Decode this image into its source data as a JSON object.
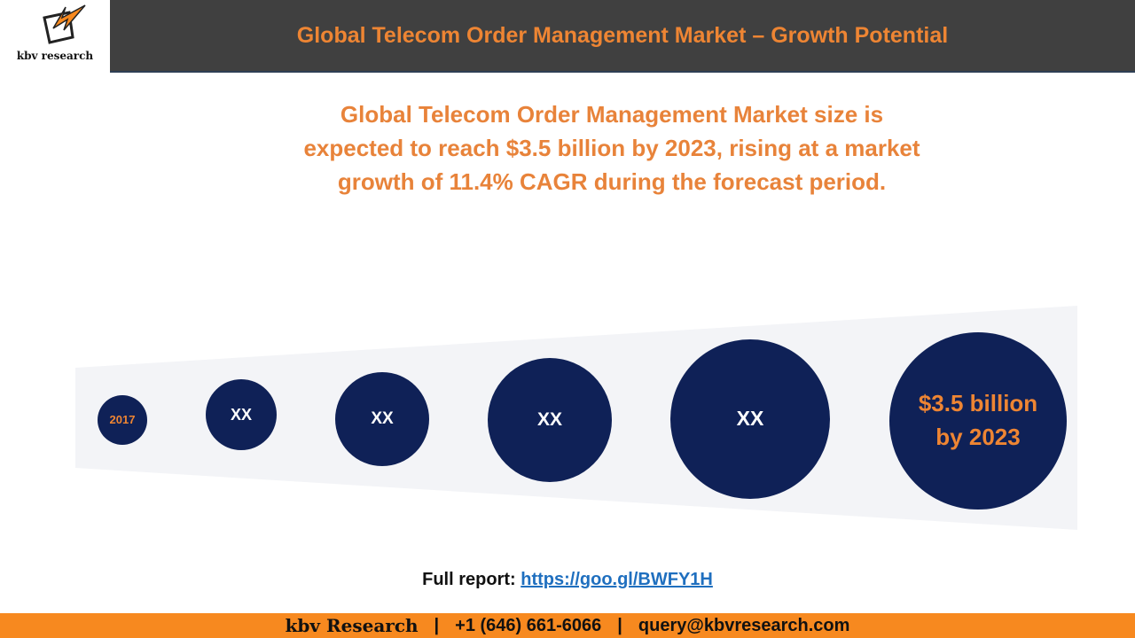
{
  "header": {
    "logo_text": "kbv research",
    "title": "Global Telecom Order Management Market – Growth Potential"
  },
  "summary": "Global Telecom Order Management Market size is expected to reach $3.5 billion by 2023, rising at a market growth of 11.4% CAGR during the forecast period.",
  "circles": [
    {
      "label": "2017"
    },
    {
      "label": "XX"
    },
    {
      "label": "XX"
    },
    {
      "label": "XX"
    },
    {
      "label": "XX"
    },
    {
      "label": "$3.5 billion by 2023"
    }
  ],
  "report": {
    "label": "Full report:",
    "link": "https://goo.gl/BWFY1H"
  },
  "footer": {
    "company": "kbv Research",
    "separator": "|",
    "phone": "+1 (646) 661-6066",
    "email": "query@kbvresearch.com"
  }
}
